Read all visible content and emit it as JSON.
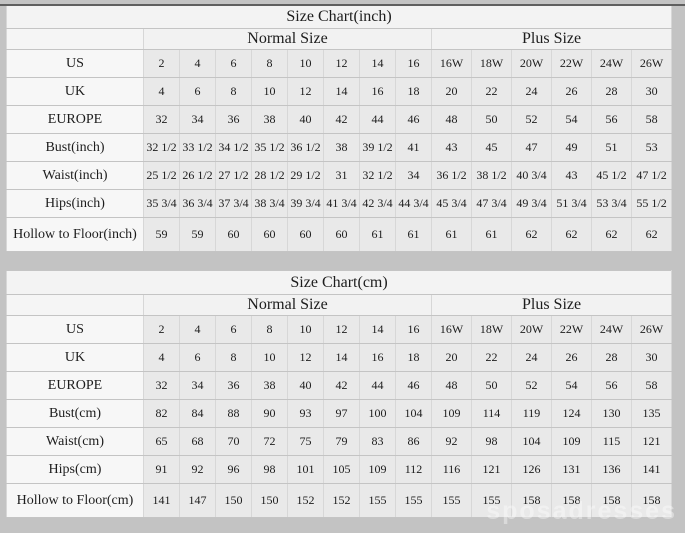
{
  "page": {
    "watermark": "sposadresses",
    "background_color": "#c3c3c3",
    "data_cell_color": "#e9e9e9",
    "label_cell_color": "#f7f7f7"
  },
  "chart_data": [
    {
      "type": "table",
      "title": "Size Chart(inch)",
      "column_groups": [
        {
          "label": "Normal Size",
          "span": 8
        },
        {
          "label": "Plus Size",
          "span": 6
        }
      ],
      "rows": [
        {
          "label": "US",
          "normal": [
            "2",
            "4",
            "6",
            "8",
            "10",
            "12",
            "14",
            "16"
          ],
          "plus": [
            "16W",
            "18W",
            "20W",
            "22W",
            "24W",
            "26W"
          ]
        },
        {
          "label": "UK",
          "normal": [
            "4",
            "6",
            "8",
            "10",
            "12",
            "14",
            "16",
            "18"
          ],
          "plus": [
            "20",
            "22",
            "24",
            "26",
            "28",
            "30"
          ]
        },
        {
          "label": "EUROPE",
          "normal": [
            "32",
            "34",
            "36",
            "38",
            "40",
            "42",
            "44",
            "46"
          ],
          "plus": [
            "48",
            "50",
            "52",
            "54",
            "56",
            "58"
          ]
        },
        {
          "label": "Bust(inch)",
          "normal": [
            "32 1/2",
            "33 1/2",
            "34 1/2",
            "35 1/2",
            "36 1/2",
            "38",
            "39 1/2",
            "41"
          ],
          "plus": [
            "43",
            "45",
            "47",
            "49",
            "51",
            "53"
          ]
        },
        {
          "label": "Waist(inch)",
          "normal": [
            "25 1/2",
            "26 1/2",
            "27 1/2",
            "28 1/2",
            "29 1/2",
            "31",
            "32 1/2",
            "34"
          ],
          "plus": [
            "36 1/2",
            "38 1/2",
            "40 3/4",
            "43",
            "45 1/2",
            "47 1/2"
          ]
        },
        {
          "label": "Hips(inch)",
          "normal": [
            "35 3/4",
            "36 3/4",
            "37 3/4",
            "38 3/4",
            "39 3/4",
            "41 3/4",
            "42 3/4",
            "44 3/4"
          ],
          "plus": [
            "45 3/4",
            "47 3/4",
            "49 3/4",
            "51 3/4",
            "53 3/4",
            "55 1/2"
          ]
        },
        {
          "label": "Hollow to Floor(inch)",
          "normal": [
            "59",
            "59",
            "60",
            "60",
            "60",
            "60",
            "61",
            "61"
          ],
          "plus": [
            "61",
            "61",
            "62",
            "62",
            "62",
            "62"
          ]
        }
      ]
    },
    {
      "type": "table",
      "title": "Size Chart(cm)",
      "column_groups": [
        {
          "label": "Normal Size",
          "span": 8
        },
        {
          "label": "Plus Size",
          "span": 6
        }
      ],
      "rows": [
        {
          "label": "US",
          "normal": [
            "2",
            "4",
            "6",
            "8",
            "10",
            "12",
            "14",
            "16"
          ],
          "plus": [
            "16W",
            "18W",
            "20W",
            "22W",
            "24W",
            "26W"
          ]
        },
        {
          "label": "UK",
          "normal": [
            "4",
            "6",
            "8",
            "10",
            "12",
            "14",
            "16",
            "18"
          ],
          "plus": [
            "20",
            "22",
            "24",
            "26",
            "28",
            "30"
          ]
        },
        {
          "label": "EUROPE",
          "normal": [
            "32",
            "34",
            "36",
            "38",
            "40",
            "42",
            "44",
            "46"
          ],
          "plus": [
            "48",
            "50",
            "52",
            "54",
            "56",
            "58"
          ]
        },
        {
          "label": "Bust(cm)",
          "normal": [
            "82",
            "84",
            "88",
            "90",
            "93",
            "97",
            "100",
            "104"
          ],
          "plus": [
            "109",
            "114",
            "119",
            "124",
            "130",
            "135"
          ]
        },
        {
          "label": "Waist(cm)",
          "normal": [
            "65",
            "68",
            "70",
            "72",
            "75",
            "79",
            "83",
            "86"
          ],
          "plus": [
            "92",
            "98",
            "104",
            "109",
            "115",
            "121"
          ]
        },
        {
          "label": "Hips(cm)",
          "normal": [
            "91",
            "92",
            "96",
            "98",
            "101",
            "105",
            "109",
            "112"
          ],
          "plus": [
            "116",
            "121",
            "126",
            "131",
            "136",
            "141"
          ]
        },
        {
          "label": "Hollow to Floor(cm)",
          "normal": [
            "141",
            "147",
            "150",
            "150",
            "152",
            "152",
            "155",
            "155"
          ],
          "plus": [
            "155",
            "155",
            "158",
            "158",
            "158",
            "158"
          ]
        }
      ]
    }
  ]
}
